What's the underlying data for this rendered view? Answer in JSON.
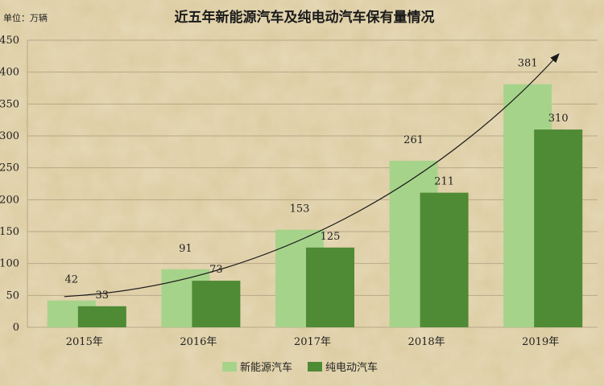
{
  "chart_data": {
    "type": "bar",
    "title": "近五年新能源汽车及纯电动汽车保有量情况",
    "unit_label": "单位：万辆",
    "categories": [
      "2015年",
      "2016年",
      "2017年",
      "2018年",
      "2019年"
    ],
    "series": [
      {
        "name": "新能源汽车",
        "values": [
          42,
          91,
          153,
          261,
          381
        ],
        "color": "#a6d38a"
      },
      {
        "name": "纯电动汽车",
        "values": [
          33,
          73,
          125,
          211,
          310
        ],
        "color": "#4f8a35"
      }
    ],
    "yticks": [
      "0",
      "50",
      "100",
      "150",
      "200",
      "250",
      "300",
      "350",
      "400",
      "450"
    ],
    "ylim": [
      0,
      450
    ],
    "grid": true,
    "legend": "bottom-center",
    "trend_arrow": true,
    "background_color": "#dccba0",
    "grid_color": "#b8a888"
  }
}
